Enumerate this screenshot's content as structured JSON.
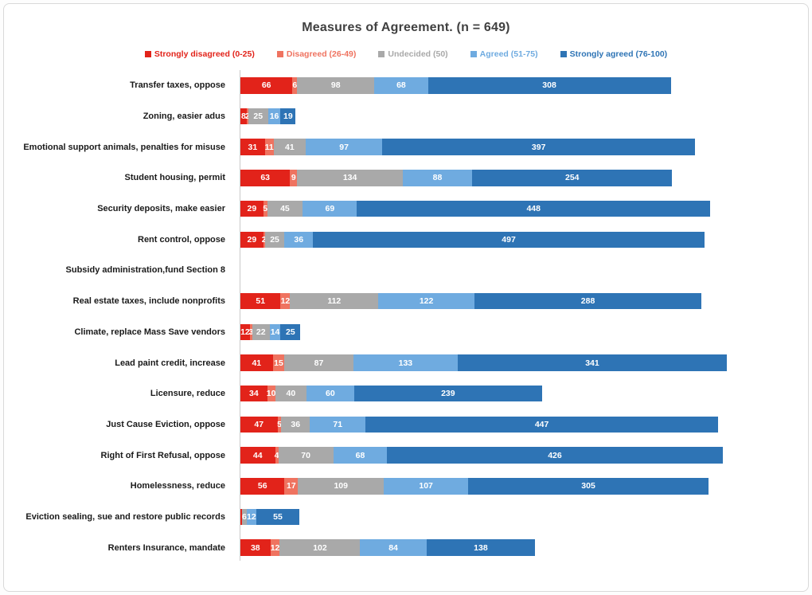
{
  "title": "Measures of Agreement. (n = 649)",
  "chart_data": {
    "type": "bar",
    "orientation": "horizontal",
    "stacked": true,
    "title": "Measures of Agreement. (n = 649)",
    "n": 649,
    "legend_position": "top",
    "axis_ticks_visible": false,
    "series": [
      {
        "key": "strongly-disagreed",
        "name": "Strongly disagreed (0-25)",
        "color": "#e2231a"
      },
      {
        "key": "disagreed",
        "name": "Disagreed (26-49)",
        "color": "#ef7360"
      },
      {
        "key": "undecided",
        "name": "Undecided (50)",
        "color": "#a9a9a9"
      },
      {
        "key": "agreed",
        "name": "Agreed (51-75)",
        "color": "#6fabe0"
      },
      {
        "key": "strongly-agreed",
        "name": "Strongly agreed (76-100)",
        "color": "#2e74b5"
      }
    ],
    "rows": [
      {
        "category": "Transfer taxes, oppose",
        "values": [
          66,
          6,
          98,
          68,
          308
        ]
      },
      {
        "category": "Zoning, easier adus",
        "values": [
          8,
          2,
          25,
          16,
          19
        ]
      },
      {
        "category": "Emotional support animals, penalties for misuse",
        "values": [
          31,
          11,
          41,
          97,
          397
        ]
      },
      {
        "category": "Student housing, permit",
        "values": [
          63,
          9,
          134,
          88,
          254
        ]
      },
      {
        "category": "Security deposits, make easier",
        "values": [
          29,
          5,
          45,
          69,
          448
        ]
      },
      {
        "category": "Rent control, oppose",
        "values": [
          29,
          2,
          25,
          36,
          497
        ]
      },
      {
        "category": "Subsidy administration,fund Section 8",
        "values": [
          0,
          0,
          0,
          0,
          0
        ]
      },
      {
        "category": "Real estate taxes, include nonprofits",
        "values": [
          51,
          12,
          112,
          122,
          288
        ]
      },
      {
        "category": "Climate, replace Mass Save vendors",
        "values": [
          12,
          3,
          22,
          14,
          25
        ]
      },
      {
        "category": "Lead paint credit, increase",
        "values": [
          41,
          15,
          87,
          133,
          341
        ]
      },
      {
        "category": "Licensure, reduce",
        "values": [
          34,
          10,
          40,
          60,
          239
        ]
      },
      {
        "category": "Just Cause Eviction, oppose",
        "values": [
          47,
          5,
          36,
          71,
          447
        ]
      },
      {
        "category": "Right of First Refusal, oppose",
        "values": [
          44,
          4,
          70,
          68,
          426
        ]
      },
      {
        "category": "Homelessness, reduce",
        "values": [
          56,
          17,
          109,
          107,
          305
        ]
      },
      {
        "category": "Eviction sealing, sue and restore public records",
        "values": [
          2,
          0,
          6,
          12,
          55
        ],
        "hide_labels": [
          0
        ]
      },
      {
        "category": "Renters Insurance, mandate",
        "values": [
          38,
          12,
          102,
          84,
          138
        ]
      }
    ]
  }
}
